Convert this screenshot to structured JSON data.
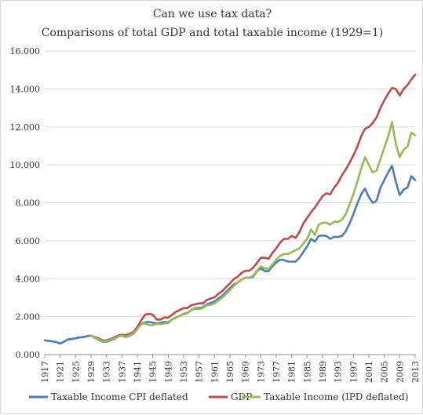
{
  "chart_data": {
    "type": "line",
    "title": "Can we use tax data?",
    "subtitle": "Comparisons of total GDP and total taxable income (1929=1)",
    "xlabel": "",
    "ylabel": "",
    "ylim": [
      0,
      16
    ],
    "xlim": [
      1917,
      2013
    ],
    "grid": true,
    "legend_position": "bottom",
    "y_ticks": [
      "0.000",
      "2.000",
      "4.000",
      "6.000",
      "8.000",
      "10.000",
      "12.000",
      "14.000",
      "16.000"
    ],
    "x_ticks": [
      "1917",
      "1921",
      "1925",
      "1929",
      "1933",
      "1937",
      "1941",
      "1945",
      "1949",
      "1953",
      "1957",
      "1961",
      "1965",
      "1969",
      "1973",
      "1977",
      "1981",
      "1985",
      "1989",
      "1993",
      "1997",
      "2001",
      "2005",
      "2009",
      "2013"
    ],
    "colors": {
      "Taxable Income CPI deflated": "#4a7ebb",
      "GDP": "#be4b48",
      "Taxable Income (IPD deflated)": "#98b954"
    },
    "series": [
      {
        "name": "Taxable Income CPI deflated",
        "x": [
          1917,
          1918,
          1919,
          1920,
          1921,
          1922,
          1923,
          1924,
          1925,
          1926,
          1927,
          1928,
          1929,
          1930,
          1931,
          1932,
          1933,
          1934,
          1935,
          1936,
          1937,
          1938,
          1939,
          1940,
          1941,
          1942,
          1943,
          1944,
          1945,
          1946,
          1947,
          1948,
          1949,
          1950,
          1951,
          1952,
          1953,
          1954,
          1955,
          1956,
          1957,
          1958,
          1959,
          1960,
          1961,
          1962,
          1963,
          1964,
          1965,
          1966,
          1967,
          1968,
          1969,
          1970,
          1971,
          1972,
          1973,
          1974,
          1975,
          1976,
          1977,
          1978,
          1979,
          1980,
          1981,
          1982,
          1983,
          1984,
          1985,
          1986,
          1987,
          1988,
          1989,
          1990,
          1991,
          1992,
          1993,
          1994,
          1995,
          1996,
          1997,
          1998,
          1999,
          2000,
          2001,
          2002,
          2003,
          2004,
          2005,
          2006,
          2007,
          2008,
          2009,
          2010,
          2011,
          2012,
          2013
        ],
        "values": [
          0.75,
          0.72,
          0.7,
          0.66,
          0.58,
          0.68,
          0.8,
          0.82,
          0.86,
          0.9,
          0.92,
          0.97,
          1.0,
          0.88,
          0.78,
          0.68,
          0.68,
          0.75,
          0.82,
          0.95,
          1.0,
          0.92,
          1.0,
          1.1,
          1.35,
          1.6,
          1.7,
          1.72,
          1.68,
          1.65,
          1.68,
          1.72,
          1.7,
          1.85,
          1.95,
          2.05,
          2.15,
          2.2,
          2.35,
          2.45,
          2.45,
          2.5,
          2.65,
          2.72,
          2.8,
          2.95,
          3.1,
          3.3,
          3.5,
          3.7,
          3.8,
          3.95,
          4.05,
          4.05,
          4.1,
          4.4,
          4.55,
          4.4,
          4.4,
          4.65,
          4.85,
          5.0,
          4.98,
          4.9,
          4.9,
          4.9,
          5.1,
          5.4,
          5.7,
          6.1,
          5.95,
          6.25,
          6.28,
          6.25,
          6.1,
          6.2,
          6.2,
          6.25,
          6.5,
          6.9,
          7.4,
          7.95,
          8.45,
          8.75,
          8.3,
          8.0,
          8.1,
          8.8,
          9.2,
          9.6,
          9.95,
          9.1,
          8.4,
          8.7,
          8.8,
          9.4,
          9.2
        ]
      },
      {
        "name": "GDP",
        "x": [
          1929,
          1930,
          1931,
          1932,
          1933,
          1934,
          1935,
          1936,
          1937,
          1938,
          1939,
          1940,
          1941,
          1942,
          1943,
          1944,
          1945,
          1946,
          1947,
          1948,
          1949,
          1950,
          1951,
          1952,
          1953,
          1954,
          1955,
          1956,
          1957,
          1958,
          1959,
          1960,
          1961,
          1962,
          1963,
          1964,
          1965,
          1966,
          1967,
          1968,
          1969,
          1970,
          1971,
          1972,
          1973,
          1974,
          1975,
          1976,
          1977,
          1978,
          1979,
          1980,
          1981,
          1982,
          1983,
          1984,
          1985,
          1986,
          1987,
          1988,
          1989,
          1990,
          1991,
          1992,
          1993,
          1994,
          1995,
          1996,
          1997,
          1998,
          1999,
          2000,
          2001,
          2002,
          2003,
          2004,
          2005,
          2006,
          2007,
          2008,
          2009,
          2010,
          2011,
          2012,
          2013
        ],
        "values": [
          1.0,
          0.92,
          0.85,
          0.75,
          0.75,
          0.82,
          0.9,
          1.0,
          1.05,
          1.02,
          1.1,
          1.2,
          1.45,
          1.8,
          2.1,
          2.15,
          2.1,
          1.85,
          1.85,
          1.95,
          1.95,
          2.1,
          2.25,
          2.35,
          2.45,
          2.45,
          2.6,
          2.65,
          2.7,
          2.7,
          2.88,
          2.95,
          3.02,
          3.2,
          3.35,
          3.55,
          3.75,
          3.98,
          4.1,
          4.3,
          4.42,
          4.42,
          4.58,
          4.82,
          5.1,
          5.1,
          5.05,
          5.35,
          5.6,
          5.9,
          6.1,
          6.1,
          6.25,
          6.15,
          6.45,
          6.9,
          7.2,
          7.5,
          7.75,
          8.05,
          8.35,
          8.5,
          8.45,
          8.8,
          9.05,
          9.45,
          9.75,
          10.1,
          10.5,
          10.95,
          11.5,
          11.9,
          12.0,
          12.2,
          12.5,
          13.0,
          13.4,
          13.75,
          14.05,
          14.0,
          13.65,
          14.0,
          14.2,
          14.5,
          14.75
        ]
      },
      {
        "name": "Taxable Income (IPD deflated)",
        "x": [
          1929,
          1930,
          1931,
          1932,
          1933,
          1934,
          1935,
          1936,
          1937,
          1938,
          1939,
          1940,
          1941,
          1942,
          1943,
          1944,
          1945,
          1946,
          1947,
          1948,
          1949,
          1950,
          1951,
          1952,
          1953,
          1954,
          1955,
          1956,
          1957,
          1958,
          1959,
          1960,
          1961,
          1962,
          1963,
          1964,
          1965,
          1966,
          1967,
          1968,
          1969,
          1970,
          1971,
          1972,
          1973,
          1974,
          1975,
          1976,
          1977,
          1978,
          1979,
          1980,
          1981,
          1982,
          1983,
          1984,
          1985,
          1986,
          1987,
          1988,
          1989,
          1990,
          1991,
          1992,
          1993,
          1994,
          1995,
          1996,
          1997,
          1998,
          1999,
          2000,
          2001,
          2002,
          2003,
          2004,
          2005,
          2006,
          2007,
          2008,
          2009,
          2010,
          2011,
          2012,
          2013
        ],
        "values": [
          1.0,
          0.9,
          0.8,
          0.7,
          0.7,
          0.78,
          0.85,
          0.95,
          1.0,
          0.95,
          1.02,
          1.12,
          1.35,
          1.6,
          1.65,
          1.55,
          1.55,
          1.62,
          1.6,
          1.65,
          1.65,
          1.85,
          1.95,
          2.05,
          2.12,
          2.18,
          2.35,
          2.42,
          2.4,
          2.45,
          2.6,
          2.62,
          2.7,
          2.85,
          3.0,
          3.2,
          3.4,
          3.62,
          3.8,
          3.95,
          4.05,
          4.05,
          4.15,
          4.42,
          4.65,
          4.55,
          4.5,
          4.75,
          5.0,
          5.2,
          5.3,
          5.3,
          5.4,
          5.5,
          5.6,
          5.85,
          6.1,
          6.6,
          6.3,
          6.85,
          6.95,
          6.95,
          6.85,
          7.0,
          7.0,
          7.1,
          7.4,
          7.9,
          8.45,
          9.1,
          9.8,
          10.4,
          10.0,
          9.6,
          9.7,
          10.3,
          10.9,
          11.5,
          12.25,
          11.1,
          10.4,
          10.8,
          10.95,
          11.7,
          11.55
        ]
      }
    ]
  }
}
